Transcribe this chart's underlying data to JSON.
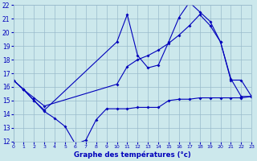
{
  "xlabel": "Graphe des températures (°c)",
  "background_color": "#cce8ec",
  "grid_color": "#99bbcc",
  "line_color": "#0000bb",
  "xlim": [
    0,
    23
  ],
  "ylim": [
    12,
    22
  ],
  "xticks": [
    0,
    1,
    2,
    3,
    4,
    5,
    6,
    7,
    8,
    9,
    10,
    11,
    12,
    13,
    14,
    15,
    16,
    17,
    18,
    19,
    20,
    21,
    22,
    23
  ],
  "yticks": [
    12,
    13,
    14,
    15,
    16,
    17,
    18,
    19,
    20,
    21,
    22
  ],
  "series": [
    {
      "x": [
        0,
        1,
        2,
        3,
        4,
        5,
        6,
        7,
        8,
        9,
        10,
        11,
        12,
        13,
        14,
        15,
        16,
        17,
        18,
        19,
        20,
        21,
        22,
        23
      ],
      "y": [
        16.5,
        15.8,
        15.0,
        14.2,
        13.7,
        13.1,
        11.8,
        12.1,
        13.6,
        14.4,
        14.4,
        14.4,
        14.5,
        14.5,
        14.5,
        15.0,
        15.1,
        15.1,
        15.2,
        15.2,
        15.2,
        15.2,
        15.2,
        15.3
      ]
    },
    {
      "x": [
        0,
        1,
        2,
        3,
        10,
        11,
        12,
        13,
        14,
        15,
        16,
        17,
        18,
        19,
        20,
        21,
        22,
        23
      ],
      "y": [
        16.5,
        15.8,
        15.0,
        14.3,
        19.3,
        21.3,
        18.3,
        17.4,
        17.6,
        19.3,
        21.1,
        22.2,
        21.5,
        20.8,
        19.3,
        16.5,
        16.5,
        15.3
      ]
    },
    {
      "x": [
        0,
        1,
        2,
        3,
        10,
        11,
        12,
        13,
        14,
        15,
        16,
        17,
        18,
        19,
        20,
        21,
        22,
        23
      ],
      "y": [
        16.5,
        15.8,
        15.2,
        14.6,
        16.2,
        17.5,
        18.0,
        18.3,
        18.7,
        19.2,
        19.8,
        20.5,
        21.3,
        20.5,
        19.3,
        16.6,
        15.3,
        15.3
      ]
    }
  ]
}
